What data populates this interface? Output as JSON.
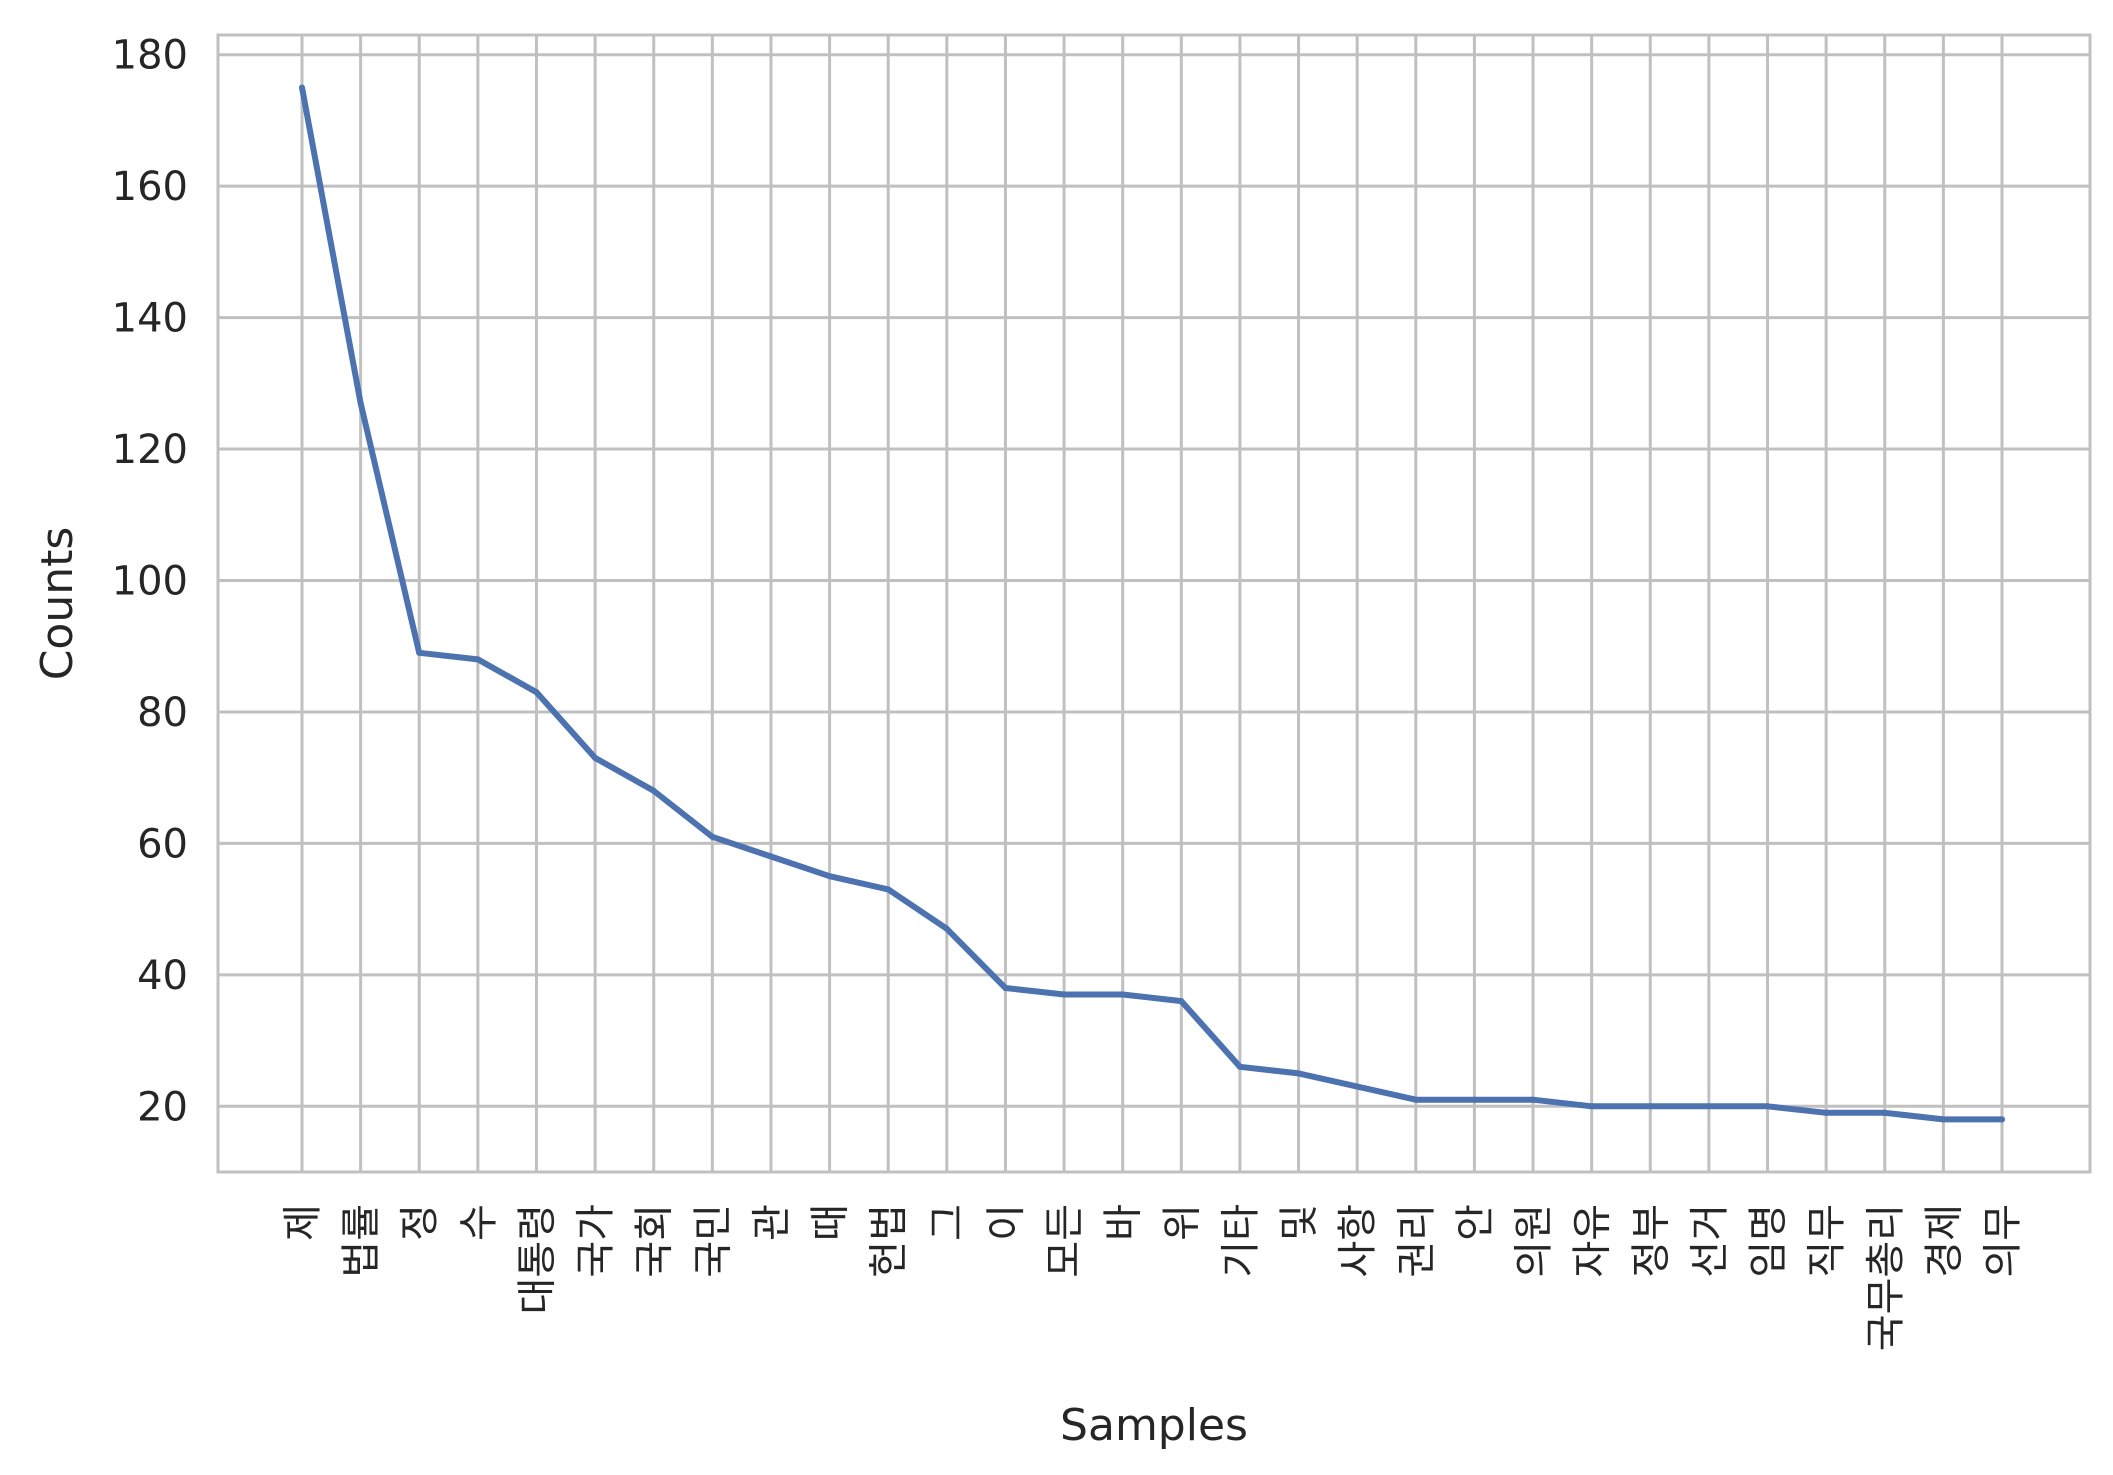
{
  "chart_data": {
    "type": "line",
    "title": "",
    "xlabel": "Samples",
    "ylabel": "Counts",
    "categories": [
      "제",
      "법률",
      "정",
      "수",
      "대통령",
      "국가",
      "국회",
      "국민",
      "관",
      "때",
      "헌법",
      "그",
      "이",
      "모든",
      "바",
      "위",
      "기타",
      "및",
      "사항",
      "권리",
      "안",
      "의원",
      "자유",
      "정부",
      "선거",
      "임명",
      "직무",
      "국무총리",
      "경제",
      "의무"
    ],
    "series": [
      {
        "values": [
          175,
          127,
          89,
          88,
          83,
          73,
          68,
          61,
          58,
          55,
          53,
          47,
          38,
          37,
          37,
          36,
          26,
          25,
          23,
          21,
          21,
          21,
          20,
          20,
          20,
          20,
          19,
          19,
          18,
          18
        ]
      }
    ],
    "ylim": [
      10,
      183
    ],
    "yticks": [
      20,
      40,
      60,
      80,
      100,
      120,
      140,
      160,
      180
    ],
    "grid": true,
    "line_color": "#4c72b0",
    "grid_color": "#c0c0c0"
  }
}
